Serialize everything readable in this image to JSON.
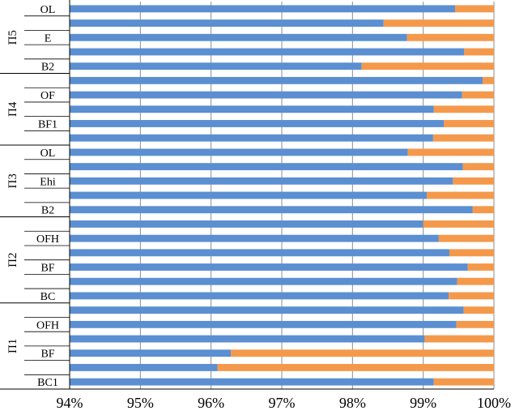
{
  "chart_data": {
    "type": "bar",
    "orientation": "horizontal",
    "stacked": true,
    "xlim": [
      94,
      100
    ],
    "x_ticks": [
      "94%",
      "95%",
      "96%",
      "97%",
      "98%",
      "99%",
      "100%"
    ],
    "grid": "vertical major gridlines",
    "legend": "none",
    "colors": {
      "blue_series": "#5b8fd1",
      "orange_series": "#f4994b",
      "grid": "#8c8c8c",
      "axis": "#000000"
    },
    "groups": [
      {
        "label": "П5",
        "rows": [
          {
            "label": "OL",
            "blue": 99.45,
            "orange": 0.55
          },
          {
            "label": "",
            "blue": 98.44,
            "orange": 1.56
          },
          {
            "label": "E",
            "blue": 98.77,
            "orange": 1.23
          },
          {
            "label": "",
            "blue": 99.58,
            "orange": 0.42
          },
          {
            "label": "B2",
            "blue": 98.13,
            "orange": 1.87
          }
        ]
      },
      {
        "label": "П4",
        "rows": [
          {
            "label": "",
            "blue": 99.84,
            "orange": 0.16
          },
          {
            "label": "OF",
            "blue": 99.55,
            "orange": 0.45
          },
          {
            "label": "",
            "blue": 99.15,
            "orange": 0.85
          },
          {
            "label": "BF1",
            "blue": 99.29,
            "orange": 0.71
          },
          {
            "label": "",
            "blue": 99.14,
            "orange": 0.86
          }
        ]
      },
      {
        "label": "П3",
        "rows": [
          {
            "label": "OL",
            "blue": 98.78,
            "orange": 1.22
          },
          {
            "label": "",
            "blue": 99.56,
            "orange": 0.44
          },
          {
            "label": "Ehi",
            "blue": 99.42,
            "orange": 0.58
          },
          {
            "label": "",
            "blue": 99.05,
            "orange": 0.95
          },
          {
            "label": "B2",
            "blue": 99.7,
            "orange": 0.3
          }
        ]
      },
      {
        "label": "П2",
        "rows": [
          {
            "label": "",
            "blue": 99.0,
            "orange": 1.0
          },
          {
            "label": "OFH",
            "blue": 99.22,
            "orange": 0.78
          },
          {
            "label": "",
            "blue": 99.37,
            "orange": 0.63
          },
          {
            "label": "BF",
            "blue": 99.63,
            "orange": 0.37
          },
          {
            "label": "",
            "blue": 99.48,
            "orange": 0.52
          },
          {
            "label": "BC",
            "blue": 99.36,
            "orange": 0.64
          }
        ]
      },
      {
        "label": "П1",
        "rows": [
          {
            "label": "",
            "blue": 99.57,
            "orange": 0.43
          },
          {
            "label": "OFH",
            "blue": 99.47,
            "orange": 0.53
          },
          {
            "label": "",
            "blue": 99.02,
            "orange": 0.98
          },
          {
            "label": "BF",
            "blue": 96.28,
            "orange": 3.72
          },
          {
            "label": "",
            "blue": 96.09,
            "orange": 3.91
          },
          {
            "label": "BC1",
            "blue": 99.15,
            "orange": 0.85
          }
        ]
      }
    ]
  }
}
